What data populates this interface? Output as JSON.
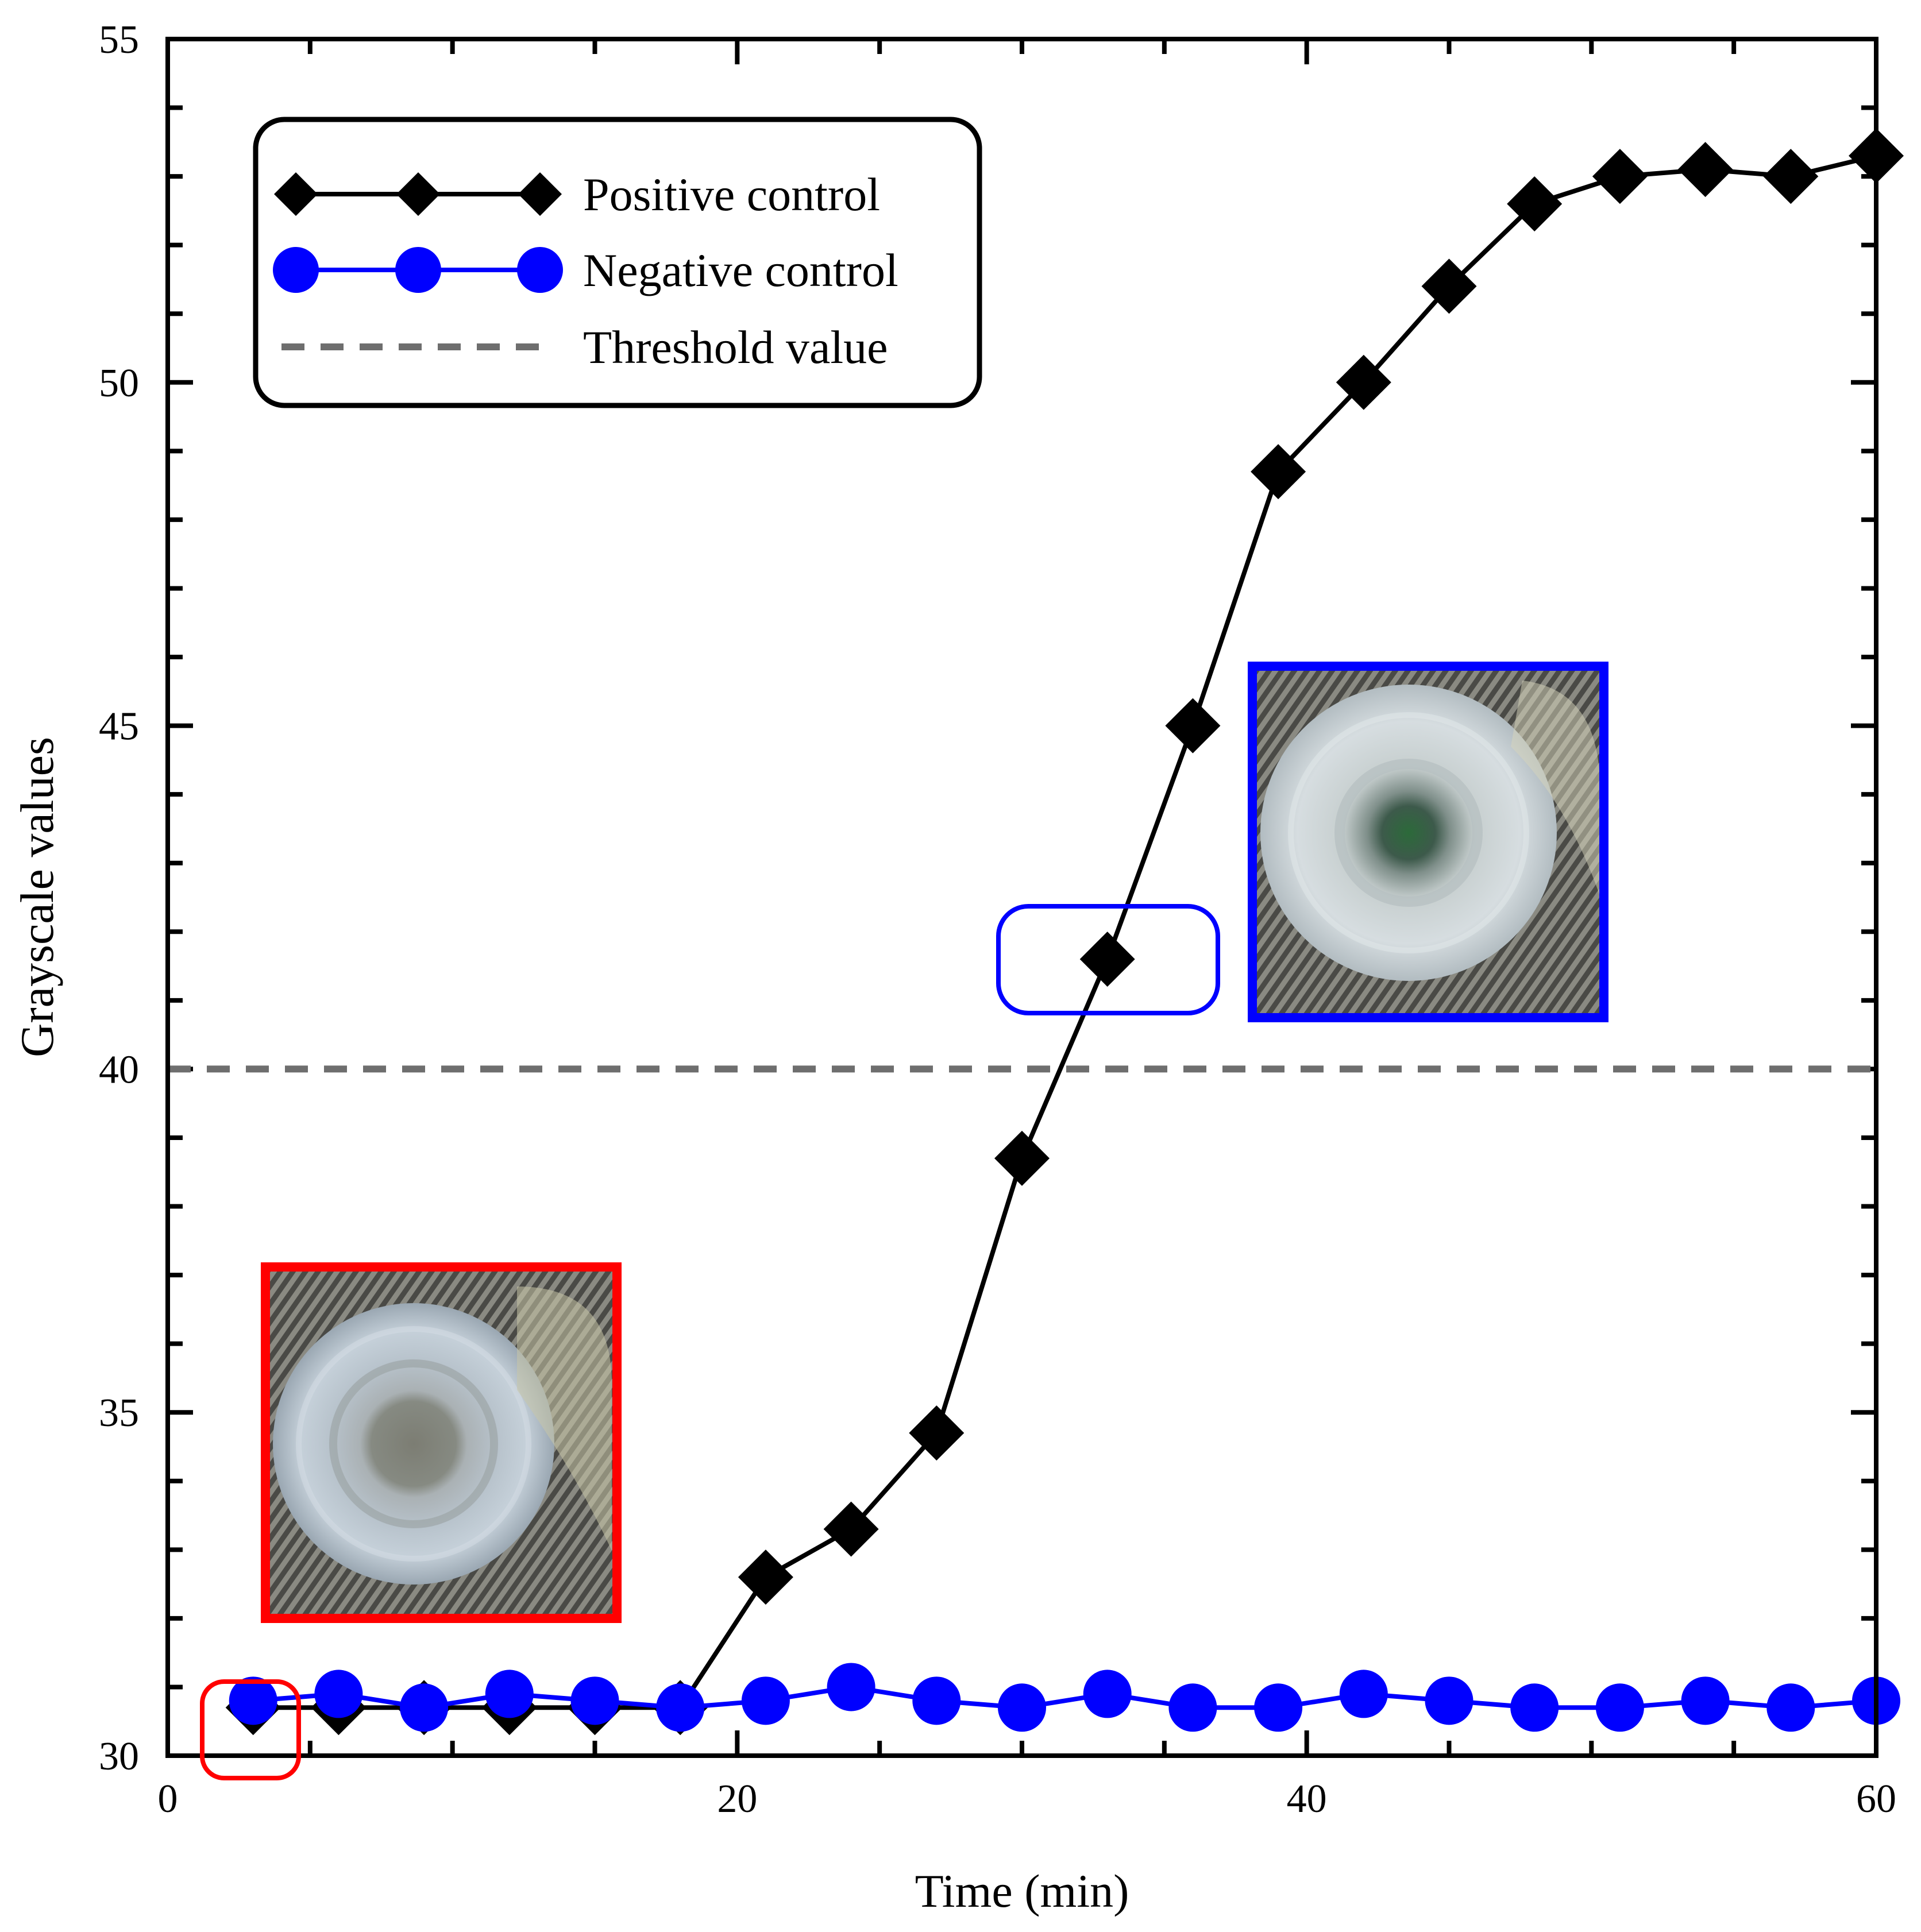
{
  "chart_data": {
    "type": "line",
    "xlabel": "Time (min)",
    "ylabel": "Grayscale values",
    "xlim": [
      0,
      60
    ],
    "ylim": [
      30,
      55
    ],
    "x_ticks": [
      0,
      20,
      40,
      60
    ],
    "y_ticks": [
      30,
      35,
      40,
      45,
      50,
      55
    ],
    "grid": false,
    "legend_position": "top-left",
    "series": [
      {
        "name": "Positive control",
        "color": "#000000",
        "marker": "diamond",
        "x": [
          3,
          6,
          9,
          12,
          15,
          18,
          21,
          24,
          27,
          30,
          33,
          36,
          39,
          42,
          45,
          48,
          51,
          54,
          57,
          60
        ],
        "y": [
          30.7,
          30.7,
          30.7,
          30.7,
          30.7,
          30.7,
          32.6,
          33.3,
          34.7,
          38.7,
          41.6,
          45.0,
          48.7,
          50.0,
          51.4,
          52.6,
          53.0,
          53.1,
          53.0,
          53.3
        ]
      },
      {
        "name": "Negative control",
        "color": "#0000ff",
        "marker": "circle",
        "x": [
          3,
          6,
          9,
          12,
          15,
          18,
          21,
          24,
          27,
          30,
          33,
          36,
          39,
          42,
          45,
          48,
          51,
          54,
          57,
          60
        ],
        "y": [
          30.8,
          30.9,
          30.7,
          30.9,
          30.8,
          30.7,
          30.8,
          31.0,
          30.8,
          30.7,
          30.9,
          30.7,
          30.7,
          30.9,
          30.8,
          30.7,
          30.7,
          30.8,
          30.7,
          30.8
        ]
      }
    ],
    "threshold": {
      "name": "Threshold value",
      "value": 40,
      "color": "#6e6e6e",
      "style": "dashed"
    },
    "annotations": [
      {
        "kind": "highlight",
        "color": "#ff0000",
        "target": "Negative control at t=3 min"
      },
      {
        "kind": "highlight",
        "color": "#0000ff",
        "target": "Positive control at t=33 min"
      },
      {
        "kind": "inset-photo",
        "color": "#ff0000",
        "description_icon": "tube-photo-before"
      },
      {
        "kind": "inset-photo",
        "color": "#0000ff",
        "description_icon": "tube-photo-after"
      }
    ]
  }
}
